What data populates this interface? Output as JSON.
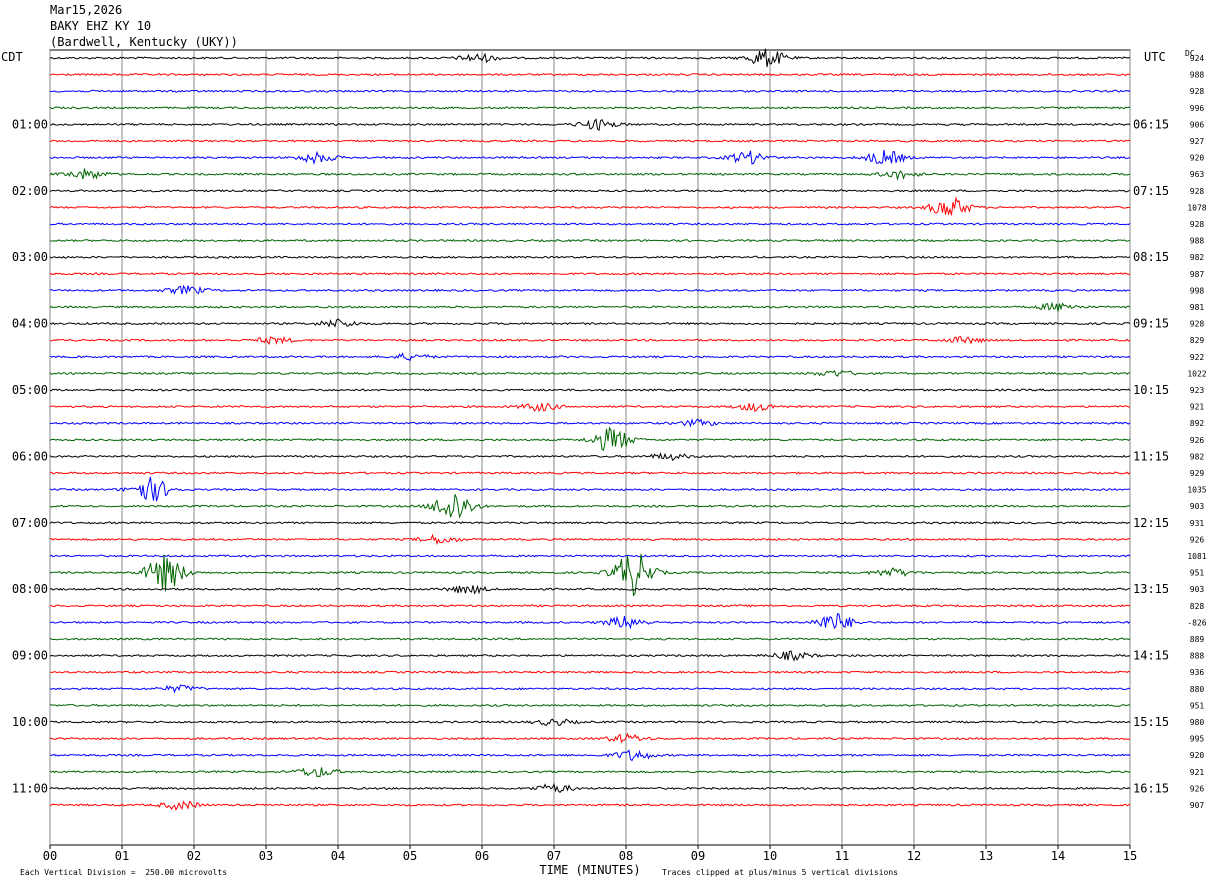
{
  "header": {
    "date": "Mar15,2026",
    "station": "BAKY EHZ KY 10",
    "location": "(Bardwell, Kentucky (UKY))"
  },
  "left_timezone": "CDT",
  "right_timezone": "UTC",
  "dc_label": "DC",
  "footer": {
    "scale_note": "Each Vertical Division =  250.00 microvolts",
    "clip_note": "Traces clipped at plus/minus 5 vertical divisions"
  },
  "chart_data": {
    "type": "line",
    "title": "",
    "xlabel": "TIME (MINUTES)",
    "xlim": [
      0,
      15
    ],
    "x_ticks": [
      "00",
      "01",
      "02",
      "03",
      "04",
      "05",
      "06",
      "07",
      "08",
      "09",
      "10",
      "11",
      "12",
      "13",
      "14",
      "15"
    ],
    "minutes_per_trace": 15,
    "trace_colors": [
      "#000000",
      "#ff0000",
      "#0000ff",
      "#006400"
    ],
    "left_hour_labels": [
      "01:00",
      "02:00",
      "03:00",
      "04:00",
      "05:00",
      "06:00",
      "07:00",
      "08:00",
      "09:00",
      "10:00",
      "11:00"
    ],
    "right_hour_labels": [
      "06:15",
      "07:15",
      "08:15",
      "09:15",
      "10:15",
      "11:15",
      "12:15",
      "13:15",
      "14:15",
      "15:15",
      "16:15"
    ],
    "dc_offsets": [
      "924",
      "988",
      "928",
      "996",
      "906",
      "927",
      "920",
      "963",
      "928",
      "1078",
      "928",
      "988",
      "982",
      "987",
      "998",
      "981",
      "928",
      "829",
      "922",
      "1022",
      "923",
      "921",
      "892",
      "926",
      "982",
      "929",
      "1035",
      "903",
      "931",
      "926",
      "1081",
      "951",
      "903",
      "828",
      "-826",
      "889",
      "888",
      "936",
      "880",
      "951",
      "980",
      "995",
      "920",
      "921",
      "926",
      "907"
    ],
    "events": [
      {
        "trace": 0,
        "minute": 5.95,
        "amp": 4
      },
      {
        "trace": 0,
        "minute": 9.95,
        "amp": 9
      },
      {
        "trace": 4,
        "minute": 7.6,
        "amp": 5
      },
      {
        "trace": 6,
        "minute": 3.7,
        "amp": 5
      },
      {
        "trace": 6,
        "minute": 9.7,
        "amp": 6
      },
      {
        "trace": 6,
        "minute": 11.6,
        "amp": 7
      },
      {
        "trace": 7,
        "minute": 0.5,
        "amp": 5
      },
      {
        "trace": 7,
        "minute": 11.8,
        "amp": 4
      },
      {
        "trace": 9,
        "minute": 12.5,
        "amp": 10
      },
      {
        "trace": 14,
        "minute": 1.9,
        "amp": 4
      },
      {
        "trace": 15,
        "minute": 14,
        "amp": 4
      },
      {
        "trace": 16,
        "minute": 4,
        "amp": 4
      },
      {
        "trace": 17,
        "minute": 3.1,
        "amp": 3
      },
      {
        "trace": 17,
        "minute": 12.7,
        "amp": 3
      },
      {
        "trace": 18,
        "minute": 5.0,
        "amp": 3
      },
      {
        "trace": 19,
        "minute": 10.9,
        "amp": 3
      },
      {
        "trace": 21,
        "minute": 6.8,
        "amp": 4
      },
      {
        "trace": 21,
        "minute": 9.8,
        "amp": 4
      },
      {
        "trace": 22,
        "minute": 9.0,
        "amp": 3
      },
      {
        "trace": 23,
        "minute": 7.8,
        "amp": 12
      },
      {
        "trace": 24,
        "minute": 8.6,
        "amp": 3
      },
      {
        "trace": 26,
        "minute": 1.4,
        "amp": 12
      },
      {
        "trace": 27,
        "minute": 5.6,
        "amp": 16
      },
      {
        "trace": 29,
        "minute": 5.4,
        "amp": 4
      },
      {
        "trace": 31,
        "minute": 1.6,
        "amp": 18
      },
      {
        "trace": 31,
        "minute": 8.1,
        "amp": 22
      },
      {
        "trace": 31,
        "minute": 11.7,
        "amp": 4
      },
      {
        "trace": 32,
        "minute": 5.8,
        "amp": 4
      },
      {
        "trace": 34,
        "minute": 8.0,
        "amp": 6
      },
      {
        "trace": 34,
        "minute": 10.9,
        "amp": 9
      },
      {
        "trace": 36,
        "minute": 10.3,
        "amp": 4
      },
      {
        "trace": 38,
        "minute": 1.8,
        "amp": 3
      },
      {
        "trace": 40,
        "minute": 7.0,
        "amp": 3
      },
      {
        "trace": 41,
        "minute": 8.0,
        "amp": 4
      },
      {
        "trace": 42,
        "minute": 8.1,
        "amp": 5
      },
      {
        "trace": 43,
        "minute": 3.7,
        "amp": 5
      },
      {
        "trace": 44,
        "minute": 7.0,
        "amp": 4
      },
      {
        "trace": 45,
        "minute": 1.8,
        "amp": 4
      }
    ],
    "grid": true
  }
}
